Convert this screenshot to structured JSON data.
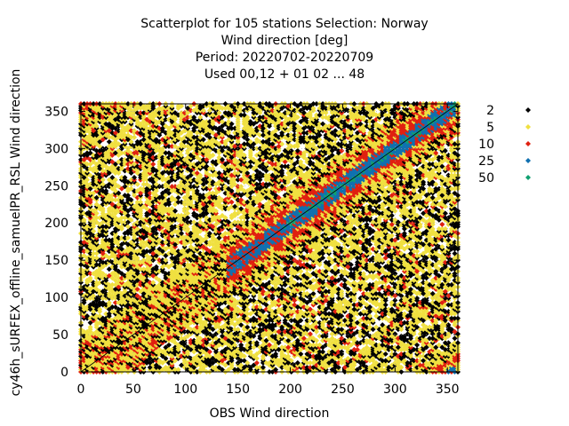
{
  "chart_data": {
    "type": "scatter",
    "title": [
      "Scatterplot for  105 stations Selection: Norway",
      "Wind direction [deg]",
      "Period: 20220702-20220709",
      "Used  00,12  + 01 02 ... 48"
    ],
    "xlabel": "OBS Wind direction",
    "ylabel": "cy46h_sURFEX_offline_samuelPR_RSL Wind direction",
    "xlim": [
      0,
      360
    ],
    "ylim": [
      0,
      360
    ],
    "xticks": [
      0,
      50,
      100,
      150,
      200,
      250,
      300,
      350
    ],
    "yticks": [
      0,
      50,
      100,
      150,
      200,
      250,
      300,
      350
    ],
    "grid": true,
    "legend_position": "right",
    "diagonal": true,
    "series": [
      {
        "name": "2",
        "color": "#000000",
        "level": 0
      },
      {
        "name": "5",
        "color": "#f0e040",
        "level": 1
      },
      {
        "name": "10",
        "color": "#e02010",
        "level": 2
      },
      {
        "name": "25",
        "color": "#1070b0",
        "level": 3
      },
      {
        "name": "50",
        "color": "#10a070",
        "level": 4
      }
    ]
  }
}
